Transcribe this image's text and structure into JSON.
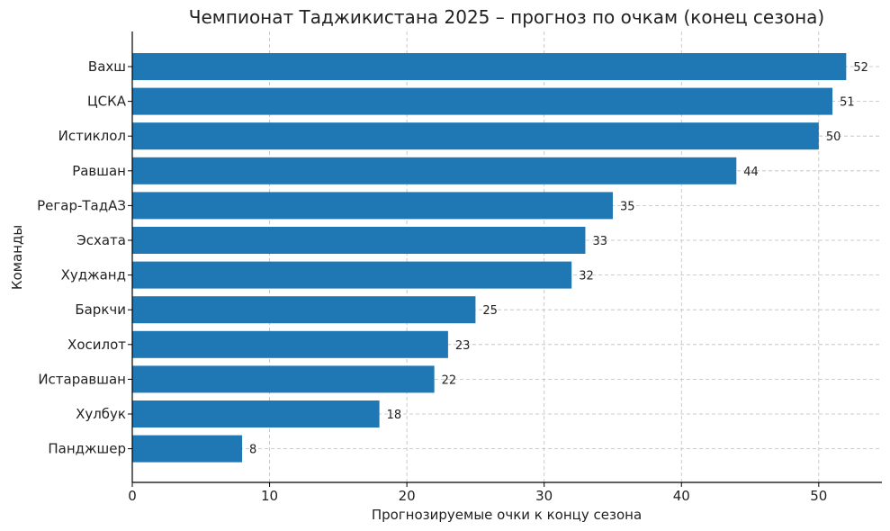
{
  "chart_data": {
    "type": "bar",
    "orientation": "horizontal",
    "title": "Чемпионат Таджикистана 2025 – прогноз по очкам (конец сезона)",
    "xlabel": "Прогнозируемые очки к концу сезона",
    "ylabel": "Команды",
    "categories": [
      "Вахш",
      "ЦСКА",
      "Истиклол",
      "Равшан",
      "Регар-ТадАЗ",
      "Эсхата",
      "Худжанд",
      "Баркчи",
      "Хосилот",
      "Истаравшан",
      "Хулбук",
      "Панджшер"
    ],
    "values": [
      52,
      51,
      50,
      44,
      35,
      33,
      32,
      25,
      23,
      22,
      18,
      8
    ],
    "xlim": [
      0,
      54.6
    ],
    "xticks": [
      0,
      10,
      20,
      30,
      40,
      50
    ],
    "grid": true,
    "bar_color": "#1f77b4",
    "data_labels": true
  }
}
